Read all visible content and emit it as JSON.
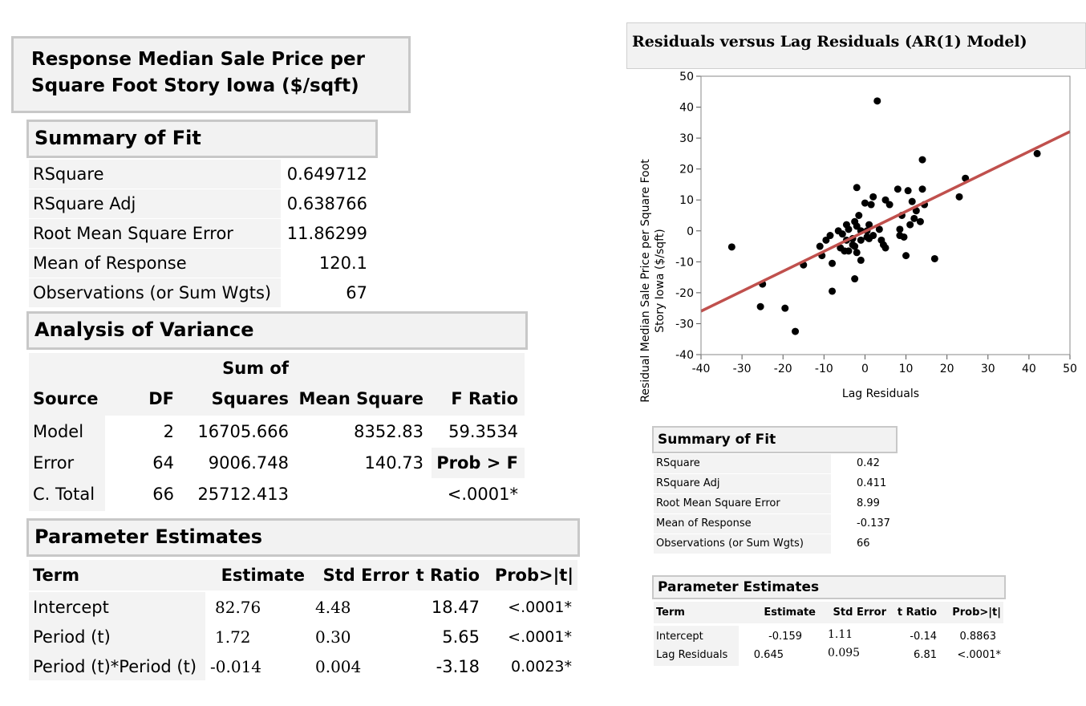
{
  "left": {
    "response_title_line1": "Response Median Sale Price per",
    "response_title_line2": "Square Foot Story Iowa  ($/sqft)",
    "summary_of_fit": {
      "title": "Summary of Fit",
      "rows": [
        {
          "label": "RSquare",
          "value": "0.649712"
        },
        {
          "label": "RSquare Adj",
          "value": "0.638766"
        },
        {
          "label": "Root Mean Square Error",
          "value": "11.86299"
        },
        {
          "label": "Mean of Response",
          "value": "120.1"
        },
        {
          "label": "Observations (or Sum Wgts)",
          "value": "67"
        }
      ]
    },
    "anova": {
      "title": "Analysis of Variance",
      "sum_of": "Sum of",
      "headers": [
        "Source",
        "DF",
        "Squares",
        "Mean Square",
        "F Ratio"
      ],
      "rows": [
        [
          "Model",
          "2",
          "16705.666",
          "8352.83",
          "59.3534"
        ],
        [
          "Error",
          "64",
          "9006.748",
          "140.73",
          "Prob > F"
        ],
        [
          "C. Total",
          "66",
          "25712.413",
          "",
          "<.0001*"
        ]
      ]
    },
    "parameter_estimates": {
      "title": "Parameter Estimates",
      "headers": [
        "Term",
        "Estimate",
        "Std Error",
        "t Ratio",
        "Prob>|t|"
      ],
      "rows": [
        [
          "Intercept",
          "82.76",
          "4.48",
          "18.47",
          "<.0001*"
        ],
        [
          "Period (t)",
          "1.72",
          "0.30",
          "5.65",
          "<.0001*"
        ],
        [
          "Period (t)*Period (t)",
          "-0.014",
          "0.004",
          "-3.18",
          "0.0023*"
        ]
      ]
    }
  },
  "right": {
    "plot_title": "Residuals versus Lag Residuals (AR(1) Model)",
    "summary_of_fit": {
      "title": "Summary of Fit",
      "rows": [
        {
          "label": "RSquare",
          "value": "0.42"
        },
        {
          "label": "RSquare Adj",
          "value": "0.411"
        },
        {
          "label": "Root Mean Square Error",
          "value": "8.99"
        },
        {
          "label": "Mean of Response",
          "value": "-0.137"
        },
        {
          "label": "Observations (or Sum Wgts)",
          "value": "66"
        }
      ]
    },
    "parameter_estimates": {
      "title": "Parameter Estimates",
      "headers": [
        "Term",
        "Estimate",
        "Std Error",
        "t Ratio",
        "Prob>|t|"
      ],
      "rows": [
        [
          "Intercept",
          "-0.159",
          "1.11",
          "-0.14",
          "0.8863"
        ],
        [
          "Lag Residuals",
          "0.645",
          "0.095",
          "6.81",
          "<.0001*"
        ]
      ]
    }
  },
  "colors": {
    "fit_line": "#c0504d",
    "point": "#000000",
    "header_bg": "#f2f2f2",
    "header_border": "#c8c8c8"
  },
  "chart_data": {
    "type": "scatter",
    "title": "Residuals versus Lag Residuals (AR(1) Model)",
    "xlabel": "Lag Residuals",
    "ylabel_line1": "Residual Median Sale Price per Square Foot",
    "ylabel_line2": "Story Iowa  ($/sqft)",
    "xlim": [
      -40,
      50
    ],
    "ylim": [
      -40,
      50
    ],
    "xticks": [
      -40,
      -30,
      -20,
      -10,
      0,
      10,
      20,
      30,
      40,
      50
    ],
    "yticks": [
      -40,
      -30,
      -20,
      -10,
      0,
      10,
      20,
      30,
      40,
      50
    ],
    "fit_line": {
      "intercept": -0.159,
      "slope": 0.645
    },
    "points": [
      [
        -32.5,
        -5.2
      ],
      [
        -25,
        -17.2
      ],
      [
        -25.5,
        -24.5
      ],
      [
        -19.5,
        -25
      ],
      [
        -17,
        -32.5
      ],
      [
        -15,
        -11
      ],
      [
        -11,
        -5
      ],
      [
        -10.5,
        -8
      ],
      [
        -9.5,
        -3
      ],
      [
        -8.5,
        -1.5
      ],
      [
        -8,
        -10.5
      ],
      [
        -8,
        -19.5
      ],
      [
        -6.5,
        0
      ],
      [
        -6,
        -5.5
      ],
      [
        -5.5,
        -1
      ],
      [
        -5,
        -6.5
      ],
      [
        -4.5,
        2
      ],
      [
        -4.5,
        -3
      ],
      [
        -4,
        0.5
      ],
      [
        -4,
        -6.5
      ],
      [
        -3,
        -2.5
      ],
      [
        -3,
        -4.5
      ],
      [
        -2.5,
        3
      ],
      [
        -2.5,
        -5
      ],
      [
        -2.5,
        -15.5
      ],
      [
        -2,
        14
      ],
      [
        -2,
        1.5
      ],
      [
        -2,
        -7
      ],
      [
        -1.5,
        5
      ],
      [
        -1,
        0
      ],
      [
        -1,
        -3
      ],
      [
        -1,
        -9.5
      ],
      [
        0,
        9
      ],
      [
        0.5,
        0
      ],
      [
        0.5,
        -2
      ],
      [
        1,
        2
      ],
      [
        1,
        -2.5
      ],
      [
        1.5,
        8.5
      ],
      [
        2,
        11
      ],
      [
        2,
        -1.5
      ],
      [
        3,
        42
      ],
      [
        3.5,
        0.5
      ],
      [
        4,
        -3
      ],
      [
        4.5,
        -4.5
      ],
      [
        5,
        10
      ],
      [
        5,
        -5.5
      ],
      [
        6,
        8.5
      ],
      [
        8,
        13.5
      ],
      [
        8.5,
        0.5
      ],
      [
        8.5,
        -1.5
      ],
      [
        9,
        5
      ],
      [
        9.5,
        -2
      ],
      [
        10,
        -8
      ],
      [
        10.5,
        13
      ],
      [
        11,
        2
      ],
      [
        11.5,
        9.5
      ],
      [
        12,
        4
      ],
      [
        12.5,
        6.5
      ],
      [
        13.5,
        3
      ],
      [
        14,
        13.5
      ],
      [
        14,
        23
      ],
      [
        14.5,
        8.5
      ],
      [
        17,
        -9
      ],
      [
        23,
        11
      ],
      [
        24.5,
        17
      ],
      [
        42,
        25
      ]
    ]
  }
}
